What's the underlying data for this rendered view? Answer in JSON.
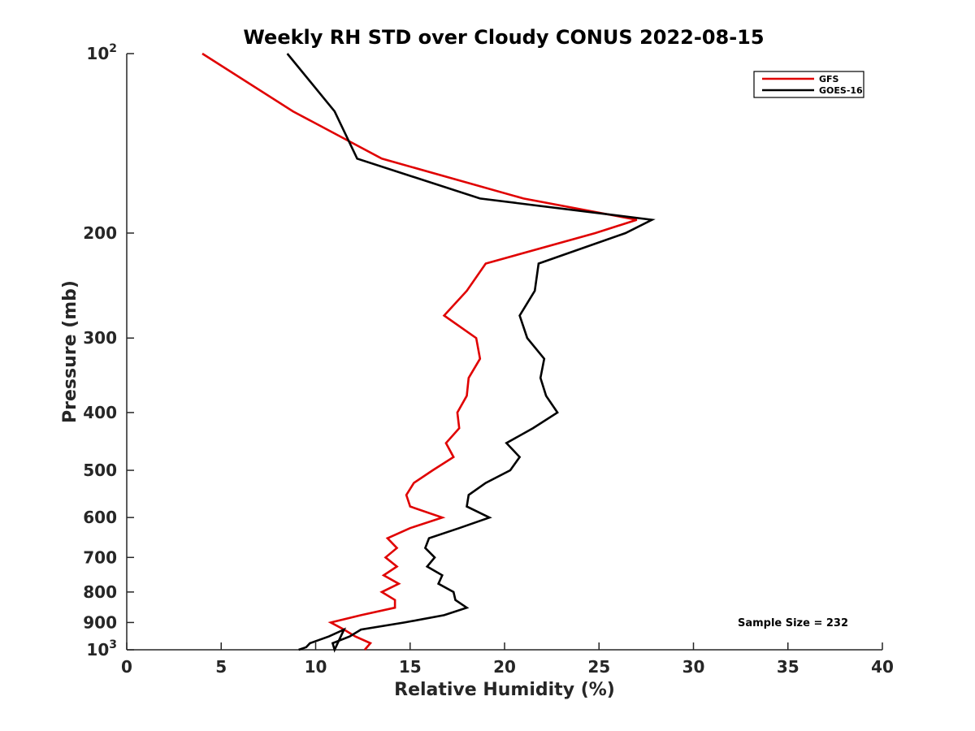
{
  "chart_data": {
    "type": "line",
    "title": "Weekly RH STD over Cloudy CONUS 2022-08-15",
    "xlabel": "Relative Humidity (%)",
    "ylabel": "Pressure (mb)",
    "xlim": [
      0,
      40
    ],
    "ylim": [
      100,
      1000
    ],
    "y_scale": "log",
    "y_reversed": false,
    "x_ticks": [
      0,
      5,
      10,
      15,
      20,
      25,
      30,
      35,
      40
    ],
    "x_tick_labels": [
      "0",
      "5",
      "10",
      "15",
      "20",
      "25",
      "30",
      "35",
      "40"
    ],
    "y_ticks": [
      100,
      200,
      300,
      400,
      500,
      600,
      700,
      800,
      900,
      1000
    ],
    "y_tick_labels": [
      {
        "base": "10",
        "exp": "2"
      },
      {
        "base": "200",
        "exp": ""
      },
      {
        "base": "300",
        "exp": ""
      },
      {
        "base": "400",
        "exp": ""
      },
      {
        "base": "500",
        "exp": ""
      },
      {
        "base": "600",
        "exp": ""
      },
      {
        "base": "700",
        "exp": ""
      },
      {
        "base": "800",
        "exp": ""
      },
      {
        "base": "900",
        "exp": ""
      },
      {
        "base": "10",
        "exp": "3"
      }
    ],
    "grid": false,
    "legend_position": "top-right",
    "annotation": "Sample Size = 232",
    "series": [
      {
        "name": "GFS",
        "color": "#e00000",
        "points": [
          [
            4.0,
            100
          ],
          [
            8.8,
            125
          ],
          [
            13.5,
            150
          ],
          [
            21.0,
            175
          ],
          [
            27.0,
            190
          ],
          [
            24.8,
            200
          ],
          [
            19.0,
            225
          ],
          [
            18.0,
            250
          ],
          [
            16.8,
            275
          ],
          [
            18.5,
            300
          ],
          [
            18.7,
            325
          ],
          [
            18.1,
            350
          ],
          [
            18.0,
            375
          ],
          [
            17.5,
            400
          ],
          [
            17.6,
            425
          ],
          [
            16.9,
            450
          ],
          [
            17.3,
            475
          ],
          [
            16.2,
            500
          ],
          [
            15.2,
            525
          ],
          [
            14.8,
            550
          ],
          [
            15.0,
            575
          ],
          [
            16.7,
            600
          ],
          [
            15.0,
            625
          ],
          [
            13.8,
            650
          ],
          [
            14.3,
            675
          ],
          [
            13.7,
            700
          ],
          [
            14.3,
            725
          ],
          [
            13.6,
            750
          ],
          [
            14.4,
            775
          ],
          [
            13.5,
            800
          ],
          [
            14.2,
            825
          ],
          [
            14.2,
            850
          ],
          [
            12.4,
            875
          ],
          [
            10.8,
            900
          ],
          [
            11.5,
            925
          ],
          [
            12.1,
            950
          ],
          [
            12.9,
            975
          ],
          [
            12.6,
            1000
          ]
        ]
      },
      {
        "name": "GOES-16",
        "color": "#000000",
        "points": [
          [
            8.5,
            100
          ],
          [
            11.0,
            125
          ],
          [
            12.2,
            150
          ],
          [
            18.7,
            175
          ],
          [
            27.8,
            190
          ],
          [
            26.4,
            200
          ],
          [
            21.8,
            225
          ],
          [
            21.6,
            250
          ],
          [
            20.8,
            275
          ],
          [
            21.2,
            300
          ],
          [
            22.1,
            325
          ],
          [
            21.9,
            350
          ],
          [
            22.2,
            375
          ],
          [
            22.8,
            400
          ],
          [
            21.5,
            425
          ],
          [
            20.1,
            450
          ],
          [
            20.8,
            475
          ],
          [
            20.3,
            500
          ],
          [
            19.0,
            525
          ],
          [
            18.1,
            550
          ],
          [
            18.0,
            575
          ],
          [
            19.2,
            600
          ],
          [
            17.6,
            625
          ],
          [
            16.0,
            650
          ],
          [
            15.8,
            675
          ],
          [
            16.3,
            700
          ],
          [
            15.9,
            725
          ],
          [
            16.7,
            750
          ],
          [
            16.5,
            775
          ],
          [
            17.3,
            800
          ],
          [
            17.4,
            825
          ],
          [
            18.0,
            850
          ],
          [
            16.8,
            875
          ],
          [
            14.7,
            900
          ],
          [
            12.4,
            925
          ],
          [
            11.8,
            950
          ],
          [
            10.9,
            975
          ],
          [
            11.0,
            1000
          ],
          [
            11.5,
            925
          ],
          [
            10.7,
            950
          ],
          [
            9.7,
            975
          ],
          [
            9.5,
            990
          ],
          [
            9.1,
            1000
          ]
        ]
      }
    ]
  }
}
